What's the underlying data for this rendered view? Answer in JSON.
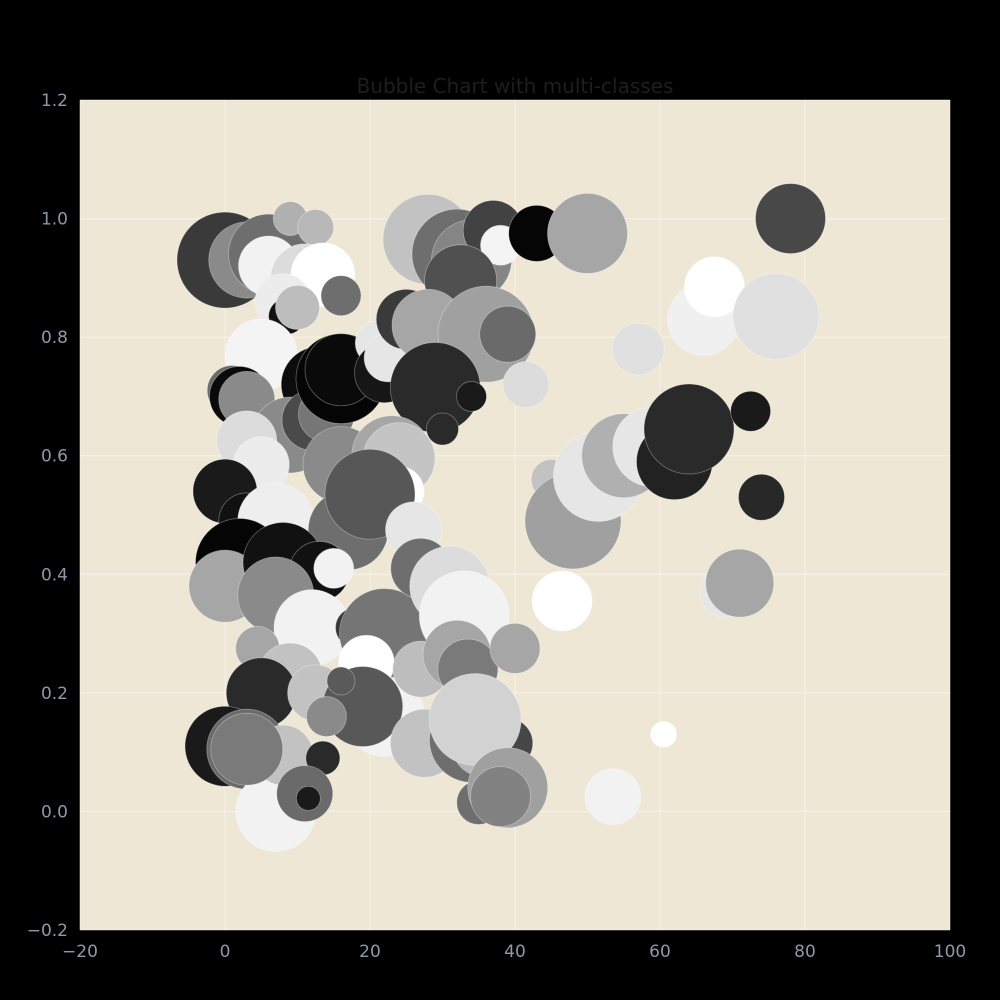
{
  "chart_data": {
    "type": "scatter",
    "title": "Bubble Chart with multi-classes",
    "xlabel": "",
    "ylabel": "",
    "xlim": [
      -20,
      100
    ],
    "ylim": [
      -0.2,
      1.2
    ],
    "xticks": [
      "−20",
      "0",
      "20",
      "40",
      "60",
      "80",
      "100"
    ],
    "yticks": [
      "−0.2",
      "0.0",
      "0.2",
      "0.4",
      "0.6",
      "0.8",
      "1.0",
      "1.2"
    ],
    "grid": true,
    "legend": "none",
    "colors": {
      "figure_bg": "#000000",
      "plot_bg": "#efe7d6",
      "grid": "#ffffff",
      "tick": "#8b9aa6",
      "title": "#1e1e1e"
    },
    "bubbles": [
      {
        "x": 0,
        "y": 0.93,
        "r": 48,
        "color": "#3a3a3a"
      },
      {
        "x": 3,
        "y": 0.93,
        "r": 38,
        "color": "#8a8a8a"
      },
      {
        "x": 6,
        "y": 0.94,
        "r": 40,
        "color": "#6e6e6e"
      },
      {
        "x": 6,
        "y": 0.92,
        "r": 30,
        "color": "#f2f2f2"
      },
      {
        "x": 9,
        "y": 1.0,
        "r": 17,
        "color": "#b0b0b0"
      },
      {
        "x": 12.5,
        "y": 0.985,
        "r": 18,
        "color": "#b8b8b8"
      },
      {
        "x": 11,
        "y": 0.9,
        "r": 34,
        "color": "#dcdcdc"
      },
      {
        "x": 13.5,
        "y": 0.905,
        "r": 32,
        "color": "#ffffff"
      },
      {
        "x": 16,
        "y": 0.87,
        "r": 20,
        "color": "#6e6e6e"
      },
      {
        "x": 8,
        "y": 0.86,
        "r": 28,
        "color": "#ececec"
      },
      {
        "x": 8.5,
        "y": 0.835,
        "r": 18,
        "color": "#111111"
      },
      {
        "x": 10,
        "y": 0.85,
        "r": 22,
        "color": "#bdbdbd"
      },
      {
        "x": 5,
        "y": 0.77,
        "r": 36,
        "color": "#f4f4f4"
      },
      {
        "x": 1,
        "y": 0.71,
        "r": 25,
        "color": "#6a6a6a"
      },
      {
        "x": 2,
        "y": 0.7,
        "r": 30,
        "color": "#0a0a0a"
      },
      {
        "x": 3,
        "y": 0.695,
        "r": 28,
        "color": "#8a8a8a"
      },
      {
        "x": 11,
        "y": 0.71,
        "r": 22,
        "color": "#9a9a9a"
      },
      {
        "x": 13,
        "y": 0.72,
        "r": 38,
        "color": "#0c0c0c"
      },
      {
        "x": 9,
        "y": 0.635,
        "r": 38,
        "color": "#8a8a8a"
      },
      {
        "x": 12,
        "y": 0.66,
        "r": 30,
        "color": "#4a4a4a"
      },
      {
        "x": 14,
        "y": 0.67,
        "r": 28,
        "color": "#767676"
      },
      {
        "x": 16,
        "y": 0.73,
        "r": 45,
        "color": "#050505"
      },
      {
        "x": 16,
        "y": 0.745,
        "r": 36,
        "color": "#0a0a0a"
      },
      {
        "x": 21,
        "y": 0.79,
        "r": 22,
        "color": "#e6e6e6"
      },
      {
        "x": 22,
        "y": 0.74,
        "r": 30,
        "color": "#161616"
      },
      {
        "x": 22.5,
        "y": 0.765,
        "r": 24,
        "color": "#e6e6e6"
      },
      {
        "x": 25,
        "y": 0.83,
        "r": 30,
        "color": "#3a3a3a"
      },
      {
        "x": 28,
        "y": 0.965,
        "r": 45,
        "color": "#c2c2c2"
      },
      {
        "x": 32,
        "y": 0.94,
        "r": 45,
        "color": "#6e6e6e"
      },
      {
        "x": 34,
        "y": 0.93,
        "r": 40,
        "color": "#858585"
      },
      {
        "x": 37,
        "y": 0.98,
        "r": 30,
        "color": "#424242"
      },
      {
        "x": 38,
        "y": 0.955,
        "r": 20,
        "color": "#f4f4f4"
      },
      {
        "x": 32.5,
        "y": 0.895,
        "r": 36,
        "color": "#505050"
      },
      {
        "x": 43,
        "y": 0.975,
        "r": 28,
        "color": "#050505"
      },
      {
        "x": 50,
        "y": 0.975,
        "r": 40,
        "color": "#a6a6a6"
      },
      {
        "x": 28,
        "y": 0.82,
        "r": 36,
        "color": "#a6a6a6"
      },
      {
        "x": 36,
        "y": 0.805,
        "r": 48,
        "color": "#a0a0a0"
      },
      {
        "x": 39,
        "y": 0.805,
        "r": 28,
        "color": "#6a6a6a"
      },
      {
        "x": 29,
        "y": 0.715,
        "r": 45,
        "color": "#2a2a2a"
      },
      {
        "x": 34,
        "y": 0.7,
        "r": 15,
        "color": "#1a1a1a"
      },
      {
        "x": 30,
        "y": 0.645,
        "r": 16,
        "color": "#2a2a2a"
      },
      {
        "x": 41.5,
        "y": 0.72,
        "r": 23,
        "color": "#dcdcdc"
      },
      {
        "x": 57,
        "y": 0.78,
        "r": 26,
        "color": "#e0e0e0"
      },
      {
        "x": 66,
        "y": 0.83,
        "r": 36,
        "color": "#f0f0f0"
      },
      {
        "x": 67.5,
        "y": 0.885,
        "r": 30,
        "color": "#ffffff"
      },
      {
        "x": 76,
        "y": 0.835,
        "r": 43,
        "color": "#e0e0e0"
      },
      {
        "x": 78,
        "y": 1.0,
        "r": 35,
        "color": "#484848"
      },
      {
        "x": 3,
        "y": 0.625,
        "r": 30,
        "color": "#dcdcdc"
      },
      {
        "x": 5,
        "y": 0.585,
        "r": 28,
        "color": "#ececec"
      },
      {
        "x": 0,
        "y": 0.54,
        "r": 32,
        "color": "#2a2a2a"
      },
      {
        "x": 0,
        "y": 0.54,
        "r": 32,
        "color": "#1a1a1a"
      },
      {
        "x": 3,
        "y": 0.49,
        "r": 28,
        "color": "#111111"
      },
      {
        "x": 7,
        "y": 0.49,
        "r": 38,
        "color": "#eeeeee"
      },
      {
        "x": 16,
        "y": 0.585,
        "r": 38,
        "color": "#8a8a8a"
      },
      {
        "x": 21,
        "y": 0.54,
        "r": 45,
        "color": "#6a6a6a"
      },
      {
        "x": 23,
        "y": 0.6,
        "r": 40,
        "color": "#a6a6a6"
      },
      {
        "x": 24,
        "y": 0.595,
        "r": 36,
        "color": "#c4c4c4"
      },
      {
        "x": 24,
        "y": 0.54,
        "r": 25,
        "color": "#ffffff"
      },
      {
        "x": 17,
        "y": 0.475,
        "r": 40,
        "color": "#6e6e6e"
      },
      {
        "x": 20,
        "y": 0.535,
        "r": 45,
        "color": "#575757"
      },
      {
        "x": 26,
        "y": 0.475,
        "r": 28,
        "color": "#e6e6e6"
      },
      {
        "x": 45,
        "y": 0.56,
        "r": 20,
        "color": "#c2c2c2"
      },
      {
        "x": 48,
        "y": 0.49,
        "r": 48,
        "color": "#a0a0a0"
      },
      {
        "x": 51.5,
        "y": 0.565,
        "r": 45,
        "color": "#e6e6e6"
      },
      {
        "x": 55,
        "y": 0.6,
        "r": 42,
        "color": "#b0b0b0"
      },
      {
        "x": 59,
        "y": 0.615,
        "r": 40,
        "color": "#e6e6e6"
      },
      {
        "x": 62,
        "y": 0.59,
        "r": 38,
        "color": "#222222"
      },
      {
        "x": 64,
        "y": 0.645,
        "r": 45,
        "color": "#2a2a2a"
      },
      {
        "x": 72.5,
        "y": 0.675,
        "r": 20,
        "color": "#1a1a1a"
      },
      {
        "x": 74,
        "y": 0.53,
        "r": 23,
        "color": "#282828"
      },
      {
        "x": 46.5,
        "y": 0.355,
        "r": 30,
        "color": "#ffffff"
      },
      {
        "x": 69,
        "y": 0.37,
        "r": 25,
        "color": "#e6e6e6"
      },
      {
        "x": 71,
        "y": 0.385,
        "r": 34,
        "color": "#a6a6a6"
      },
      {
        "x": 60.5,
        "y": 0.13,
        "r": 13,
        "color": "#ffffff"
      },
      {
        "x": 2,
        "y": 0.42,
        "r": 44,
        "color": "#050505"
      },
      {
        "x": 0,
        "y": 0.38,
        "r": 36,
        "color": "#a6a6a6"
      },
      {
        "x": 8,
        "y": 0.42,
        "r": 40,
        "color": "#111111"
      },
      {
        "x": 13,
        "y": 0.405,
        "r": 30,
        "color": "#111111"
      },
      {
        "x": 15,
        "y": 0.41,
        "r": 20,
        "color": "#f2f2f2"
      },
      {
        "x": 7,
        "y": 0.365,
        "r": 38,
        "color": "#8a8a8a"
      },
      {
        "x": 12,
        "y": 0.31,
        "r": 38,
        "color": "#f2f2f2"
      },
      {
        "x": 18,
        "y": 0.31,
        "r": 20,
        "color": "#3a3a3a"
      },
      {
        "x": 22,
        "y": 0.3,
        "r": 45,
        "color": "#757575"
      },
      {
        "x": 27,
        "y": 0.41,
        "r": 30,
        "color": "#6e6e6e"
      },
      {
        "x": 31,
        "y": 0.38,
        "r": 40,
        "color": "#dcdcdc"
      },
      {
        "x": 33,
        "y": 0.33,
        "r": 45,
        "color": "#f2f2f2"
      },
      {
        "x": 4.5,
        "y": 0.275,
        "r": 22,
        "color": "#a6a6a6"
      },
      {
        "x": 9,
        "y": 0.23,
        "r": 32,
        "color": "#c2c2c2"
      },
      {
        "x": 5,
        "y": 0.2,
        "r": 35,
        "color": "#2a2a2a"
      },
      {
        "x": 12.5,
        "y": 0.2,
        "r": 28,
        "color": "#c2c2c2"
      },
      {
        "x": 19.5,
        "y": 0.25,
        "r": 28,
        "color": "#ffffff"
      },
      {
        "x": 22,
        "y": 0.16,
        "r": 40,
        "color": "#f2f2f2"
      },
      {
        "x": 19,
        "y": 0.177,
        "r": 40,
        "color": "#585858"
      },
      {
        "x": 27,
        "y": 0.24,
        "r": 28,
        "color": "#bdbdbd"
      },
      {
        "x": 32,
        "y": 0.265,
        "r": 34,
        "color": "#a6a6a6"
      },
      {
        "x": 33.5,
        "y": 0.24,
        "r": 30,
        "color": "#7a7a7a"
      },
      {
        "x": 40,
        "y": 0.275,
        "r": 25,
        "color": "#a6a6a6"
      },
      {
        "x": 27.5,
        "y": 0.115,
        "r": 34,
        "color": "#c2c2c2"
      },
      {
        "x": 34,
        "y": 0.12,
        "r": 42,
        "color": "#6e6e6e"
      },
      {
        "x": 35.5,
        "y": 0.11,
        "r": 30,
        "color": "#b8b8b8"
      },
      {
        "x": 39,
        "y": 0.115,
        "r": 25,
        "color": "#464646"
      },
      {
        "x": 34.5,
        "y": 0.155,
        "r": 46,
        "color": "#d2d2d2"
      },
      {
        "x": 35,
        "y": 0.015,
        "r": 22,
        "color": "#6e6e6e"
      },
      {
        "x": 39,
        "y": 0.04,
        "r": 40,
        "color": "#a0a0a0"
      },
      {
        "x": 38,
        "y": 0.025,
        "r": 30,
        "color": "#828282"
      },
      {
        "x": 53.5,
        "y": 0.025,
        "r": 28,
        "color": "#f2f2f2"
      },
      {
        "x": 0,
        "y": 0.11,
        "r": 40,
        "color": "#1a1a1a"
      },
      {
        "x": 3,
        "y": 0.105,
        "r": 40,
        "color": "#6a6a6a"
      },
      {
        "x": 7,
        "y": 0.0,
        "r": 40,
        "color": "#f2f2f2"
      },
      {
        "x": 8,
        "y": 0.095,
        "r": 30,
        "color": "#c2c2c2"
      },
      {
        "x": 3,
        "y": 0.105,
        "r": 36,
        "color": "#7a7a7a"
      },
      {
        "x": 13.5,
        "y": 0.09,
        "r": 17,
        "color": "#2a2a2a"
      },
      {
        "x": 11,
        "y": 0.03,
        "r": 28,
        "color": "#6a6a6a"
      },
      {
        "x": 11.5,
        "y": 0.022,
        "r": 12,
        "color": "#1a1a1a"
      },
      {
        "x": 14,
        "y": 0.16,
        "r": 20,
        "color": "#8a8a8a"
      },
      {
        "x": 16,
        "y": 0.22,
        "r": 14,
        "color": "#5a5a5a"
      }
    ]
  }
}
